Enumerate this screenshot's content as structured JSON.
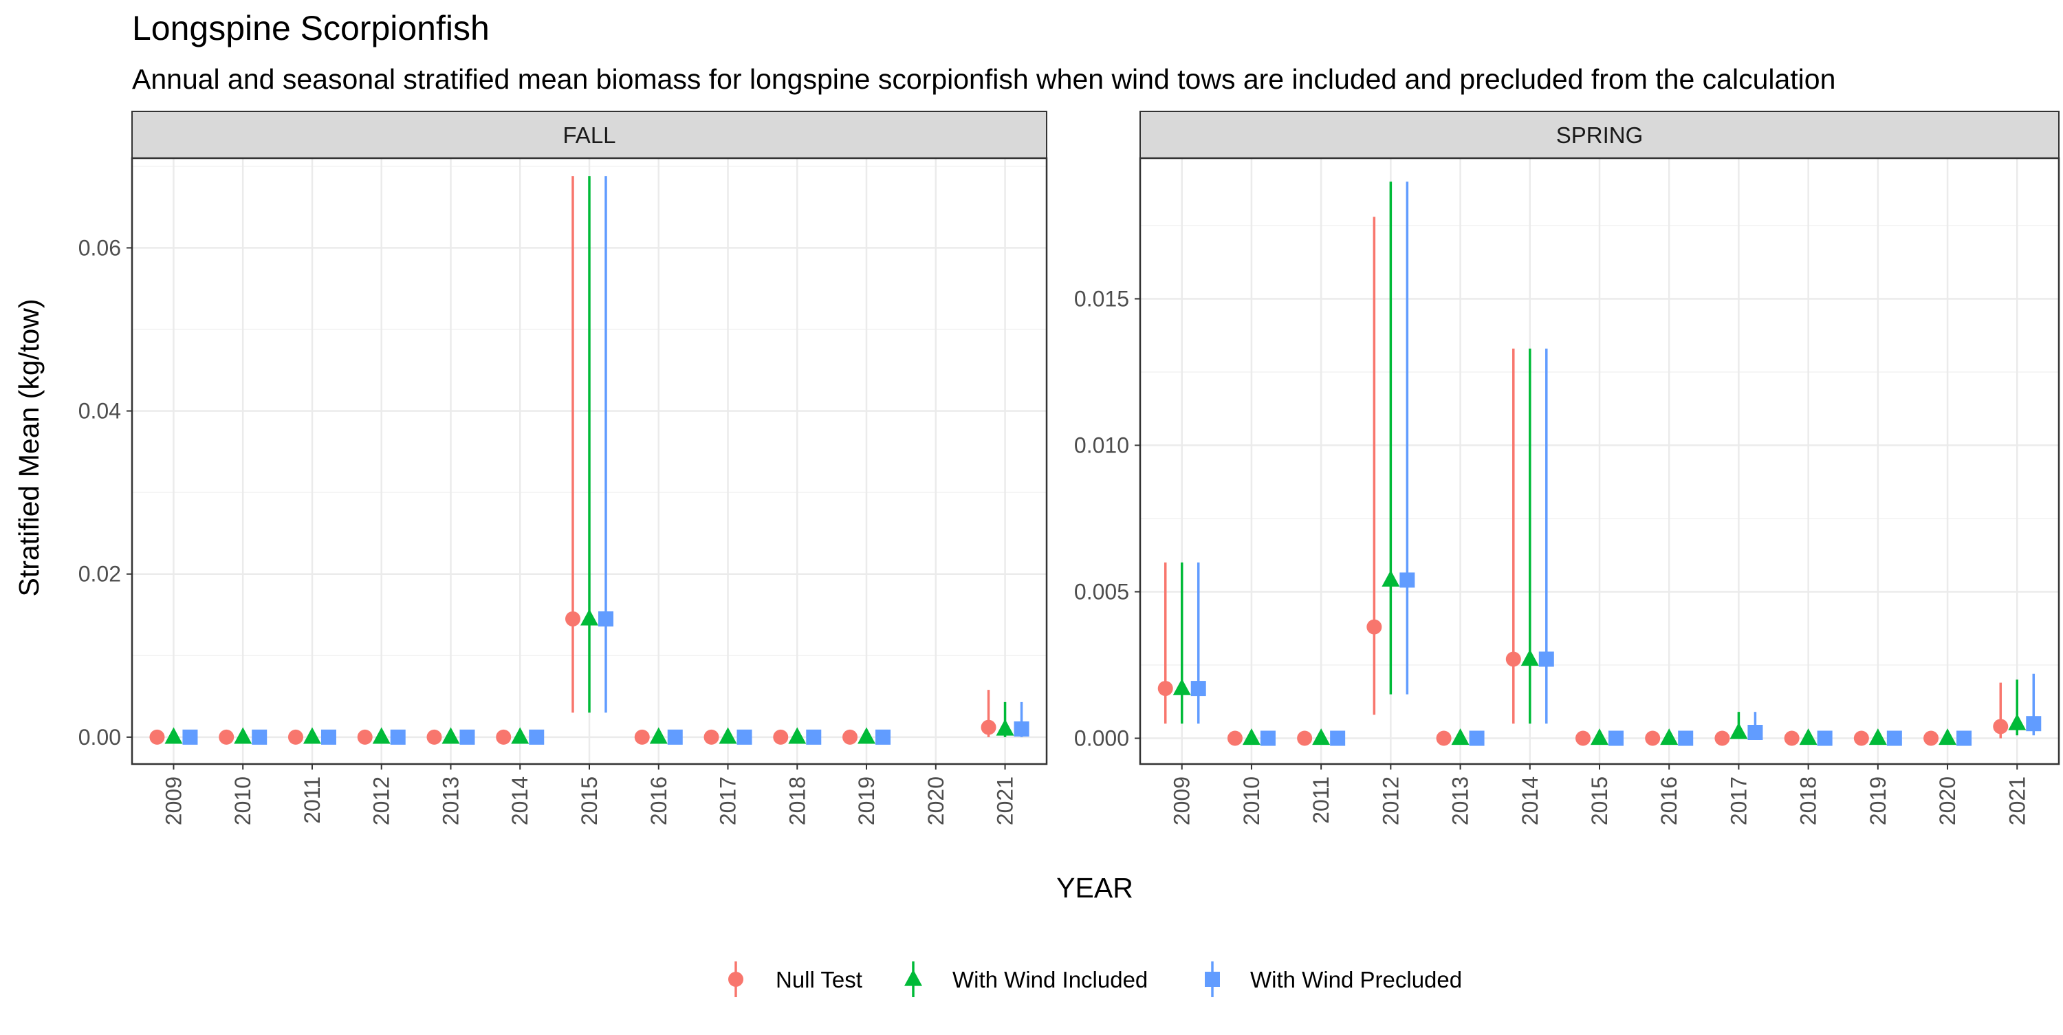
{
  "title": "Longspine Scorpionfish",
  "subtitle": "Annual and seasonal stratified mean biomass for longspine scorpionfish when wind tows are included and precluded from the calculation",
  "chart_data": {
    "type": "scatter",
    "title": "Longspine Scorpionfish",
    "subtitle": "Annual and seasonal stratified mean biomass for longspine scorpionfish when wind tows are included and precluded from the calculation",
    "xlabel": "YEAR",
    "ylabel": "Stratified Mean (kg/tow)",
    "grid": true,
    "legend_position": "bottom",
    "series": [
      {
        "name": "Null Test",
        "color": "#F8766D",
        "shape": "circle"
      },
      {
        "name": "With Wind Included",
        "color": "#00BA38",
        "shape": "triangle"
      },
      {
        "name": "With Wind Precluded",
        "color": "#619CFF",
        "shape": "square"
      }
    ],
    "panels": [
      {
        "strip": "FALL",
        "ylim": [
          -0.0033,
          0.071
        ],
        "yticks": [
          0.0,
          0.02,
          0.04,
          0.06
        ],
        "ytick_labels": [
          "0.00",
          "0.02",
          "0.04",
          "0.06"
        ],
        "categories": [
          "2009",
          "2010",
          "2011",
          "2012",
          "2013",
          "2014",
          "2015",
          "2016",
          "2017",
          "2018",
          "2019",
          "2020",
          "2021"
        ],
        "data": {
          "Null Test": [
            {
              "x": "2009",
              "y": 0.0,
              "lo": 0.0,
              "hi": 0.0
            },
            {
              "x": "2010",
              "y": 0.0,
              "lo": 0.0,
              "hi": 0.0
            },
            {
              "x": "2011",
              "y": 0.0,
              "lo": 0.0,
              "hi": 0.0
            },
            {
              "x": "2012",
              "y": 0.0,
              "lo": 0.0,
              "hi": 0.0
            },
            {
              "x": "2013",
              "y": 0.0,
              "lo": 0.0,
              "hi": 0.0
            },
            {
              "x": "2014",
              "y": 0.0,
              "lo": 0.0,
              "hi": 0.0
            },
            {
              "x": "2015",
              "y": 0.0145,
              "lo": 0.003,
              "hi": 0.0688
            },
            {
              "x": "2016",
              "y": 0.0,
              "lo": 0.0,
              "hi": 0.0
            },
            {
              "x": "2017",
              "y": 0.0,
              "lo": 0.0,
              "hi": 0.0
            },
            {
              "x": "2018",
              "y": 0.0,
              "lo": 0.0,
              "hi": 0.0
            },
            {
              "x": "2019",
              "y": 0.0,
              "lo": 0.0,
              "hi": 0.0
            },
            {
              "x": "2021",
              "y": 0.0012,
              "lo": 0.0,
              "hi": 0.0058
            }
          ],
          "With Wind Included": [
            {
              "x": "2009",
              "y": 0.0,
              "lo": 0.0,
              "hi": 0.0
            },
            {
              "x": "2010",
              "y": 0.0,
              "lo": 0.0,
              "hi": 0.0
            },
            {
              "x": "2011",
              "y": 0.0,
              "lo": 0.0,
              "hi": 0.0
            },
            {
              "x": "2012",
              "y": 0.0,
              "lo": 0.0,
              "hi": 0.0
            },
            {
              "x": "2013",
              "y": 0.0,
              "lo": 0.0,
              "hi": 0.0
            },
            {
              "x": "2014",
              "y": 0.0,
              "lo": 0.0,
              "hi": 0.0
            },
            {
              "x": "2015",
              "y": 0.0145,
              "lo": 0.003,
              "hi": 0.0688
            },
            {
              "x": "2016",
              "y": 0.0,
              "lo": 0.0,
              "hi": 0.0
            },
            {
              "x": "2017",
              "y": 0.0,
              "lo": 0.0,
              "hi": 0.0
            },
            {
              "x": "2018",
              "y": 0.0,
              "lo": 0.0,
              "hi": 0.0
            },
            {
              "x": "2019",
              "y": 0.0,
              "lo": 0.0,
              "hi": 0.0
            },
            {
              "x": "2021",
              "y": 0.001,
              "lo": 0.0,
              "hi": 0.0043
            }
          ],
          "With Wind Precluded": [
            {
              "x": "2009",
              "y": 0.0,
              "lo": 0.0,
              "hi": 0.0
            },
            {
              "x": "2010",
              "y": 0.0,
              "lo": 0.0,
              "hi": 0.0
            },
            {
              "x": "2011",
              "y": 0.0,
              "lo": 0.0,
              "hi": 0.0
            },
            {
              "x": "2012",
              "y": 0.0,
              "lo": 0.0,
              "hi": 0.0
            },
            {
              "x": "2013",
              "y": 0.0,
              "lo": 0.0,
              "hi": 0.0
            },
            {
              "x": "2014",
              "y": 0.0,
              "lo": 0.0,
              "hi": 0.0
            },
            {
              "x": "2015",
              "y": 0.0145,
              "lo": 0.003,
              "hi": 0.0688
            },
            {
              "x": "2016",
              "y": 0.0,
              "lo": 0.0,
              "hi": 0.0
            },
            {
              "x": "2017",
              "y": 0.0,
              "lo": 0.0,
              "hi": 0.0
            },
            {
              "x": "2018",
              "y": 0.0,
              "lo": 0.0,
              "hi": 0.0
            },
            {
              "x": "2019",
              "y": 0.0,
              "lo": 0.0,
              "hi": 0.0
            },
            {
              "x": "2021",
              "y": 0.001,
              "lo": 0.0,
              "hi": 0.0043
            }
          ]
        }
      },
      {
        "strip": "SPRING",
        "ylim": [
          -0.00088,
          0.0198
        ],
        "yticks": [
          0.0,
          0.005,
          0.01,
          0.015
        ],
        "ytick_labels": [
          "0.000",
          "0.005",
          "0.010",
          "0.015"
        ],
        "categories": [
          "2009",
          "2010",
          "2011",
          "2012",
          "2013",
          "2014",
          "2015",
          "2016",
          "2017",
          "2018",
          "2019",
          "2020",
          "2021"
        ],
        "data": {
          "Null Test": [
            {
              "x": "2009",
              "y": 0.0017,
              "lo": 0.0005,
              "hi": 0.006
            },
            {
              "x": "2010",
              "y": 0.0,
              "lo": 0.0,
              "hi": 0.0
            },
            {
              "x": "2011",
              "y": 0.0,
              "lo": 0.0,
              "hi": 0.0
            },
            {
              "x": "2012",
              "y": 0.0038,
              "lo": 0.0008,
              "hi": 0.0178
            },
            {
              "x": "2013",
              "y": 0.0,
              "lo": 0.0,
              "hi": 0.0
            },
            {
              "x": "2014",
              "y": 0.0027,
              "lo": 0.0005,
              "hi": 0.0133
            },
            {
              "x": "2015",
              "y": 0.0,
              "lo": 0.0,
              "hi": 0.0
            },
            {
              "x": "2016",
              "y": 0.0,
              "lo": 0.0,
              "hi": 0.0
            },
            {
              "x": "2017",
              "y": 0.0,
              "lo": 0.0,
              "hi": 0.0
            },
            {
              "x": "2018",
              "y": 0.0,
              "lo": 0.0,
              "hi": 0.0
            },
            {
              "x": "2019",
              "y": 0.0,
              "lo": 0.0,
              "hi": 0.0
            },
            {
              "x": "2020",
              "y": 0.0,
              "lo": 0.0,
              "hi": 0.0
            },
            {
              "x": "2021",
              "y": 0.0004,
              "lo": 0.0,
              "hi": 0.0019
            }
          ],
          "With Wind Included": [
            {
              "x": "2009",
              "y": 0.0017,
              "lo": 0.0005,
              "hi": 0.006
            },
            {
              "x": "2010",
              "y": 0.0,
              "lo": 0.0,
              "hi": 0.0
            },
            {
              "x": "2011",
              "y": 0.0,
              "lo": 0.0,
              "hi": 0.0
            },
            {
              "x": "2012",
              "y": 0.0054,
              "lo": 0.0015,
              "hi": 0.019
            },
            {
              "x": "2013",
              "y": 0.0,
              "lo": 0.0,
              "hi": 0.0
            },
            {
              "x": "2014",
              "y": 0.0027,
              "lo": 0.0005,
              "hi": 0.0133
            },
            {
              "x": "2015",
              "y": 0.0,
              "lo": 0.0,
              "hi": 0.0
            },
            {
              "x": "2016",
              "y": 0.0,
              "lo": 0.0,
              "hi": 0.0
            },
            {
              "x": "2017",
              "y": 0.0002,
              "lo": 0.0,
              "hi": 0.0009
            },
            {
              "x": "2018",
              "y": 0.0,
              "lo": 0.0,
              "hi": 0.0
            },
            {
              "x": "2019",
              "y": 0.0,
              "lo": 0.0,
              "hi": 0.0
            },
            {
              "x": "2020",
              "y": 0.0,
              "lo": 0.0,
              "hi": 0.0
            },
            {
              "x": "2021",
              "y": 0.0005,
              "lo": 0.0001,
              "hi": 0.002
            }
          ],
          "With Wind Precluded": [
            {
              "x": "2009",
              "y": 0.0017,
              "lo": 0.0005,
              "hi": 0.006
            },
            {
              "x": "2010",
              "y": 0.0,
              "lo": 0.0,
              "hi": 0.0
            },
            {
              "x": "2011",
              "y": 0.0,
              "lo": 0.0,
              "hi": 0.0
            },
            {
              "x": "2012",
              "y": 0.0054,
              "lo": 0.0015,
              "hi": 0.019
            },
            {
              "x": "2013",
              "y": 0.0,
              "lo": 0.0,
              "hi": 0.0
            },
            {
              "x": "2014",
              "y": 0.0027,
              "lo": 0.0005,
              "hi": 0.0133
            },
            {
              "x": "2015",
              "y": 0.0,
              "lo": 0.0,
              "hi": 0.0
            },
            {
              "x": "2016",
              "y": 0.0,
              "lo": 0.0,
              "hi": 0.0
            },
            {
              "x": "2017",
              "y": 0.0002,
              "lo": 0.0,
              "hi": 0.0009
            },
            {
              "x": "2018",
              "y": 0.0,
              "lo": 0.0,
              "hi": 0.0
            },
            {
              "x": "2019",
              "y": 0.0,
              "lo": 0.0,
              "hi": 0.0
            },
            {
              "x": "2020",
              "y": 0.0,
              "lo": 0.0,
              "hi": 0.0
            },
            {
              "x": "2021",
              "y": 0.0005,
              "lo": 0.0001,
              "hi": 0.0022
            }
          ]
        }
      }
    ]
  }
}
